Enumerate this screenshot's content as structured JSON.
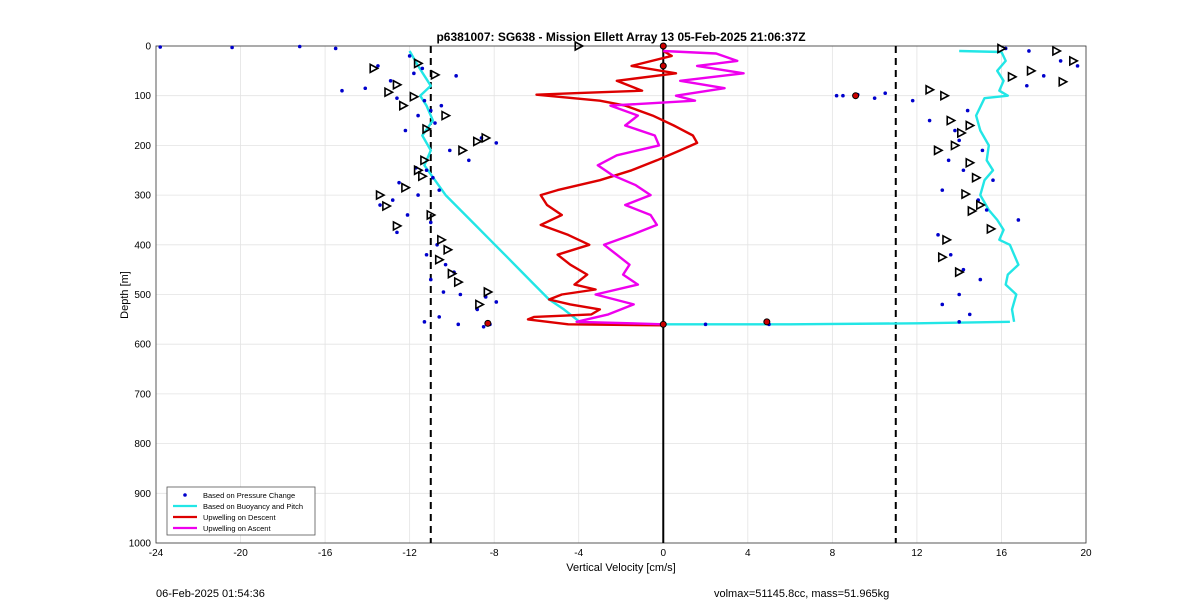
{
  "chart_data": {
    "type": "line",
    "title": "p6381007: SG638 - Mission Ellett Array 13 05-Feb-2025 21:06:37Z",
    "xlabel": "Vertical Velocity [cm/s]",
    "ylabel": "Depth [m]",
    "xlim": [
      -24,
      20
    ],
    "ylim": [
      1000,
      0
    ],
    "y_reversed": true,
    "grid": true,
    "x_ticks": [
      "-24",
      "-20",
      "-16",
      "-12",
      "-8",
      "-4",
      "0",
      "4",
      "8",
      "12",
      "16",
      "20"
    ],
    "y_ticks": [
      "0",
      "100",
      "200",
      "300",
      "400",
      "500",
      "600",
      "700",
      "800",
      "900",
      "1000"
    ],
    "reference_lines": [
      {
        "x": 0,
        "style": "solid",
        "color": "#000000"
      },
      {
        "x": -11,
        "style": "dashed",
        "color": "#000000"
      },
      {
        "x": 11,
        "style": "dashed",
        "color": "#000000"
      }
    ],
    "legend": {
      "position": "bottom-left",
      "entries": [
        {
          "label": "Based on Pressure Change",
          "color": "#0000cc",
          "marker": "dot"
        },
        {
          "label": "Based on Buoyancy and Pitch",
          "color": "#22e6e6",
          "marker": "line"
        },
        {
          "label": "Upwelling on Descent",
          "color": "#dd0000",
          "marker": "line"
        },
        {
          "label": "Upwelling on Ascent",
          "color": "#ee00ee",
          "marker": "line"
        }
      ]
    },
    "series": [
      {
        "name": "Based on Buoyancy and Pitch",
        "color": "#22e6e6",
        "x": [
          -12.0,
          -11.6,
          -11.3,
          -11.0,
          -11.5,
          -11.2,
          -10.9,
          -11.4,
          -11.0,
          -11.3,
          -10.8,
          -10.3,
          -9.6,
          -8.9,
          -8.2,
          -7.5,
          -6.8,
          -6.1,
          -5.4,
          -4.7,
          -4.1,
          -3.9
        ],
        "y": [
          10,
          40,
          60,
          80,
          100,
          120,
          150,
          180,
          210,
          240,
          270,
          300,
          330,
          360,
          390,
          420,
          450,
          480,
          510,
          530,
          550,
          558
        ]
      },
      {
        "name": "Based on Buoyancy and Pitch",
        "color": "#22e6e6",
        "x": [
          -3.9,
          0,
          6,
          12,
          16.4
        ],
        "y": [
          558,
          560,
          560,
          558,
          555
        ]
      },
      {
        "name": "Based on Buoyancy and Pitch",
        "color": "#22e6e6",
        "x": [
          14.0,
          16.0,
          16.2,
          15.8,
          16.1,
          15.9,
          16.3,
          15.2,
          14.8,
          15.0,
          15.4,
          15.3,
          15.6,
          15.2,
          15.0,
          15.4,
          15.8,
          16.1,
          15.9,
          16.4,
          16.6,
          16.8,
          16.3,
          16.2,
          16.7,
          16.5,
          16.6
        ],
        "y": [
          10,
          12,
          30,
          50,
          70,
          90,
          100,
          105,
          140,
          170,
          200,
          230,
          250,
          270,
          300,
          330,
          350,
          370,
          390,
          400,
          420,
          440,
          460,
          480,
          500,
          530,
          555
        ]
      },
      {
        "name": "Upwelling on Descent",
        "color": "#dd0000",
        "x": [
          0,
          0.4,
          -1.5,
          0.6,
          -2.2,
          -1.0,
          -4.2,
          -6.0,
          -3.0,
          -1.8,
          -0.5,
          0.5,
          1.4,
          1.6,
          0.8,
          -0.3,
          -1.5,
          -3.0,
          -5.0,
          -5.8,
          -5.5,
          -4.8,
          -5.8,
          -4.5,
          -3.5,
          -5.0,
          -4.4,
          -3.6,
          -4.2,
          -3.2,
          -4.8,
          -5.4,
          -4.4,
          -3.0,
          -3.4,
          -6.1,
          -6.4,
          -4.5,
          0
        ],
        "y": [
          10,
          20,
          40,
          55,
          70,
          90,
          95,
          98,
          110,
          120,
          140,
          160,
          180,
          195,
          210,
          230,
          250,
          270,
          290,
          300,
          320,
          340,
          360,
          380,
          400,
          420,
          440,
          460,
          480,
          490,
          500,
          510,
          520,
          530,
          540,
          545,
          550,
          560,
          562
        ]
      },
      {
        "name": "Upwelling on Ascent",
        "color": "#ee00ee",
        "x": [
          0,
          2.5,
          3.5,
          1.6,
          3.8,
          0.8,
          2.9,
          0.6,
          1.5,
          -2.5,
          -1.2,
          -1.8,
          -0.4,
          -0.2,
          -2.2,
          -3.1,
          -2.4,
          -1.3,
          -0.6,
          -1.8,
          -0.6,
          -0.3,
          -1.5,
          -2.8,
          -2.2,
          -1.6,
          -1.9,
          -1.2,
          -3.2,
          -1.4,
          -2.6,
          -4.1,
          0
        ],
        "y": [
          10,
          15,
          30,
          40,
          55,
          70,
          85,
          100,
          110,
          120,
          140,
          160,
          180,
          200,
          220,
          240,
          260,
          280,
          300,
          320,
          340,
          360,
          380,
          400,
          420,
          440,
          460,
          480,
          500,
          520,
          540,
          555,
          560
        ]
      }
    ],
    "points": {
      "name": "Based on Pressure Change",
      "color": "#0000cc",
      "x": [
        -23.8,
        -20.4,
        -17.2,
        -15.5,
        -12.0,
        -11.4,
        -13.5,
        -12.9,
        -11.8,
        -9.8,
        -15.2,
        -14.1,
        -12.6,
        -11.3,
        -10.5,
        -11.6,
        -12.2,
        -10.8,
        -11.0,
        -8.6,
        -7.9,
        -10.1,
        -9.2,
        -11.2,
        -12.5,
        -11.7,
        -10.9,
        -11.6,
        -12.8,
        -13.4,
        -12.1,
        -11.0,
        -10.6,
        -12.6,
        -10.7,
        -11.2,
        -10.3,
        -9.9,
        -11.0,
        -10.4,
        -9.6,
        -8.4,
        -7.9,
        -8.8,
        -10.6,
        -11.3,
        -9.7,
        -8.2,
        -8.5,
        2.0,
        5.0,
        8.5,
        10.5,
        16.2,
        17.3,
        18.8,
        19.6,
        18.0,
        17.2,
        8.2,
        9.2,
        10.0,
        11.8,
        12.6,
        14.4,
        13.8,
        14.0,
        15.1,
        13.5,
        14.2,
        15.6,
        13.2,
        14.9,
        15.3,
        16.8,
        13.0,
        13.6,
        14.2,
        15.0,
        14.0,
        13.2,
        14.5,
        14.0
      ],
      "y": [
        2,
        3,
        1,
        5,
        20,
        45,
        40,
        70,
        55,
        60,
        90,
        85,
        105,
        110,
        120,
        140,
        170,
        155,
        130,
        185,
        195,
        210,
        230,
        250,
        275,
        245,
        265,
        300,
        310,
        320,
        340,
        355,
        290,
        375,
        400,
        420,
        440,
        455,
        470,
        495,
        500,
        505,
        515,
        530,
        545,
        555,
        560,
        560,
        565,
        560,
        560,
        100,
        95,
        5,
        10,
        30,
        40,
        60,
        80,
        100,
        98,
        105,
        110,
        150,
        130,
        170,
        190,
        210,
        230,
        250,
        270,
        290,
        310,
        330,
        350,
        380,
        420,
        450,
        470,
        500,
        520,
        540,
        555
      ]
    },
    "triangles": {
      "x": [
        -4.0,
        -11.6,
        -10.8,
        -13.7,
        -12.6,
        -13.0,
        -11.8,
        -12.3,
        -10.3,
        -11.2,
        -8.4,
        -8.8,
        -9.5,
        -11.3,
        -11.6,
        -11.4,
        -12.2,
        -13.4,
        -13.1,
        -11.0,
        -12.6,
        -10.5,
        -10.2,
        -10.6,
        -10.0,
        -9.7,
        -8.3,
        -8.7,
        16.0,
        18.6,
        19.4,
        17.4,
        16.5,
        18.9,
        12.6,
        13.3,
        13.6,
        14.5,
        14.1,
        13.8,
        13.0,
        14.5,
        14.8,
        14.3,
        15.0,
        14.6,
        15.5,
        13.4,
        13.2,
        14.0
      ],
      "y": [
        0,
        35,
        58,
        45,
        78,
        93,
        102,
        120,
        140,
        167,
        185,
        192,
        210,
        230,
        250,
        262,
        285,
        300,
        322,
        340,
        362,
        390,
        410,
        430,
        458,
        475,
        495,
        520,
        5,
        10,
        30,
        50,
        62,
        72,
        88,
        100,
        150,
        160,
        175,
        200,
        210,
        235,
        265,
        298,
        320,
        332,
        368,
        390,
        425,
        455
      ]
    },
    "special_markers": {
      "x": [
        -8.3,
        0,
        4.9,
        9.1,
        0,
        0
      ],
      "y": [
        558,
        560,
        555,
        100,
        0,
        40
      ]
    }
  },
  "footer": {
    "left": "06-Feb-2025 01:54:36",
    "right": "volmax=51145.8cc, mass=51.965kg"
  }
}
